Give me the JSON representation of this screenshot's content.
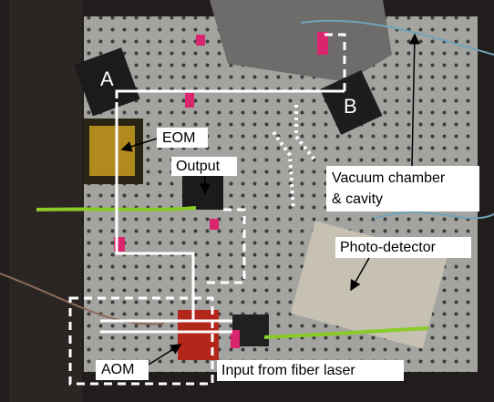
{
  "labels": {
    "point_a": "A",
    "point_b": "B",
    "eom": "EOM",
    "output": "Output",
    "vacuum_chamber": [
      "Vacuum chamber",
      "& cavity"
    ],
    "photo_detector": "Photo-detector",
    "aom": "AOM",
    "input": "Input from fiber laser"
  }
}
